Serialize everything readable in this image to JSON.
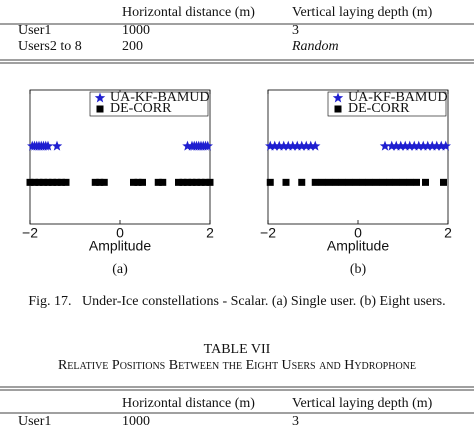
{
  "document": {
    "top_table": {
      "header": [
        "Horizontal distance (m)",
        "Vertical laying depth (m)"
      ],
      "rows": [
        [
          "User1",
          "1000",
          "3"
        ],
        [
          "Users2 to 8",
          "200",
          "Random"
        ]
      ]
    },
    "caption": "Fig. 17.   Under-Ice constellations - Scalar. (a) Single user. (b) Eight users.",
    "table_title": "TABLE VII",
    "table_subtitle": "Relative Positions Between the Eight Users and Hydrophone",
    "bottom_table": {
      "header": [
        "Horizontal distance (m)",
        "Vertical laying depth (m)"
      ],
      "rows": [
        [
          "User1",
          "1000",
          "3"
        ]
      ]
    }
  },
  "chart_data": [
    {
      "type": "scatter",
      "xlabel": "Amplitude",
      "sublabel": "(a)",
      "xlim": [
        -2,
        2
      ],
      "xticks": [
        {
          "value": -2,
          "label": "−2"
        },
        0,
        2
      ],
      "ylim": [
        -1.15,
        2.55
      ],
      "legend": "upper right",
      "series": [
        {
          "name": "UA-KF-BAMUD",
          "color": "#1f1fd0",
          "marker": "star",
          "x": [
            -1.95,
            -1.9,
            -1.85,
            -1.8,
            -1.75,
            -1.7,
            -1.65,
            -1.6,
            -1.4,
            1.5,
            1.6,
            1.65,
            1.7,
            1.75,
            1.8,
            1.85,
            1.9,
            1.95
          ],
          "values": [
            1,
            1,
            1,
            1,
            1,
            1,
            1,
            1,
            1,
            1,
            1,
            1,
            1,
            1,
            1,
            1,
            1,
            1
          ]
        },
        {
          "name": "DE-CORR",
          "color": "#000000",
          "marker": "square",
          "x": [
            -2,
            -1.9,
            -1.8,
            -1.7,
            -1.6,
            -1.5,
            -1.4,
            -1.3,
            -1.2,
            -0.55,
            -0.45,
            -0.35,
            0.3,
            0.4,
            0.5,
            0.85,
            0.95,
            1.3,
            1.4,
            1.5,
            1.6,
            1.7,
            1.8,
            1.9,
            2.0
          ],
          "values": [
            0,
            0,
            0,
            0,
            0,
            0,
            0,
            0,
            0,
            0,
            0,
            0,
            0,
            0,
            0,
            0,
            0,
            0,
            0,
            0,
            0,
            0,
            0,
            0,
            0
          ]
        }
      ]
    },
    {
      "type": "scatter",
      "xlabel": "Amplitude",
      "sublabel": "(b)",
      "xlim": [
        -2,
        2
      ],
      "xticks": [
        {
          "value": -2,
          "label": "−2"
        },
        0,
        2
      ],
      "ylim": [
        -1.15,
        2.55
      ],
      "legend": "upper right",
      "series": [
        {
          "name": "UA-KF-BAMUD",
          "color": "#1f1fd0",
          "marker": "star",
          "x": [
            -1.95,
            -1.85,
            -1.75,
            -1.65,
            -1.55,
            -1.45,
            -1.35,
            -1.25,
            -1.15,
            -1.05,
            -0.95,
            0.6,
            0.75,
            0.85,
            0.95,
            1.05,
            1.15,
            1.25,
            1.35,
            1.45,
            1.55,
            1.65,
            1.75,
            1.85,
            1.95
          ],
          "values": [
            1,
            1,
            1,
            1,
            1,
            1,
            1,
            1,
            1,
            1,
            1,
            1,
            1,
            1,
            1,
            1,
            1,
            1,
            1,
            1,
            1,
            1,
            1,
            1,
            1
          ]
        },
        {
          "name": "DE-CORR",
          "color": "#000000",
          "marker": "square",
          "x": [
            -1.95,
            -1.6,
            -1.25,
            -0.95,
            -0.8,
            -0.65,
            -0.5,
            -0.35,
            -0.2,
            -0.05,
            0.1,
            0.25,
            0.4,
            0.55,
            0.7,
            0.85,
            1.0,
            1.15,
            1.3,
            1.5,
            1.9
          ],
          "values": [
            0,
            0,
            0,
            0,
            0,
            0,
            0,
            0,
            0,
            0,
            0,
            0,
            0,
            0,
            0,
            0,
            0,
            0,
            0,
            0,
            0
          ]
        }
      ]
    }
  ]
}
